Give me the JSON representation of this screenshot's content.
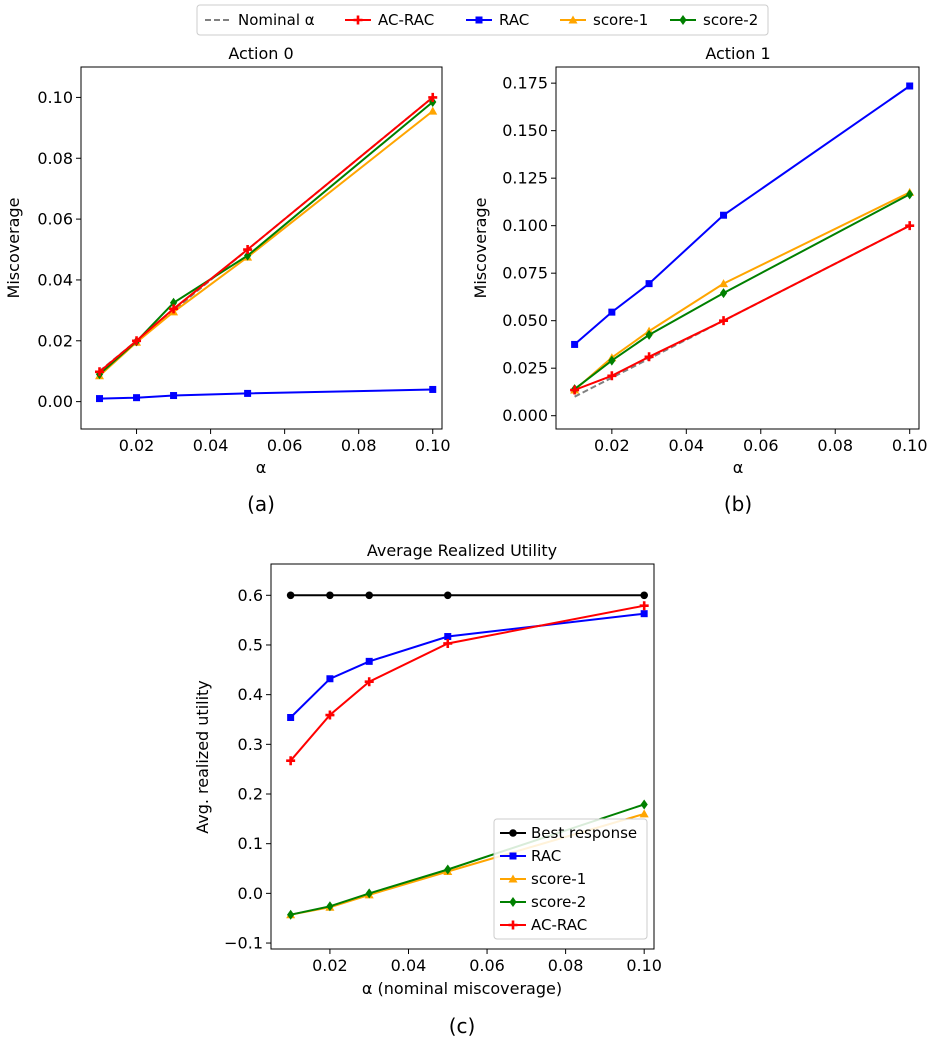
{
  "legend_top": {
    "entries": [
      {
        "label": "Nominal α",
        "color": "#808080",
        "marker": "none",
        "dash": true
      },
      {
        "label": "AC-RAC",
        "color": "#ff0000",
        "marker": "plus"
      },
      {
        "label": "RAC",
        "color": "#0000ff",
        "marker": "square"
      },
      {
        "label": "score-1",
        "color": "#ffa500",
        "marker": "triangle"
      },
      {
        "label": "score-2",
        "color": "#008000",
        "marker": "diamond"
      }
    ]
  },
  "panel_labels": [
    "(a)",
    "(b)",
    "(c)"
  ],
  "chart_data": [
    {
      "type": "line",
      "title": "Action 0",
      "xlabel": "α",
      "ylabel": "Miscoverage",
      "x": [
        0.01,
        0.02,
        0.03,
        0.05,
        0.1
      ],
      "xlim": [
        0.005,
        0.1025
      ],
      "ylim": [
        -0.009,
        0.11
      ],
      "xticks": [
        0.02,
        0.04,
        0.06,
        0.08,
        0.1
      ],
      "xtick_labels": [
        "0.02",
        "0.04",
        "0.06",
        "0.08",
        "0.10"
      ],
      "yticks": [
        0.0,
        0.02,
        0.04,
        0.06,
        0.08,
        0.1
      ],
      "ytick_labels": [
        "0.00",
        "0.02",
        "0.04",
        "0.06",
        "0.08",
        "0.10"
      ],
      "grid": false,
      "series": [
        {
          "name": "Nominal α",
          "color": "#808080",
          "marker": "none",
          "dash": true,
          "values": [
            0.01,
            0.02,
            0.03,
            0.05,
            0.1
          ]
        },
        {
          "name": "RAC",
          "color": "#0000ff",
          "marker": "square",
          "values": [
            0.001,
            0.0013,
            0.002,
            0.0027,
            0.004
          ]
        },
        {
          "name": "score-1",
          "color": "#ffa500",
          "marker": "triangle",
          "values": [
            0.0085,
            0.0195,
            0.0295,
            0.0475,
            0.0955
          ]
        },
        {
          "name": "score-2",
          "color": "#008000",
          "marker": "diamond",
          "values": [
            0.009,
            0.0198,
            0.0325,
            0.048,
            0.0985
          ]
        },
        {
          "name": "AC-RAC",
          "color": "#ff0000",
          "marker": "plus",
          "values": [
            0.0098,
            0.02,
            0.0305,
            0.05,
            0.1
          ]
        }
      ]
    },
    {
      "type": "line",
      "title": "Action 1",
      "xlabel": "α",
      "ylabel": "Miscoverage",
      "x": [
        0.01,
        0.02,
        0.03,
        0.05,
        0.1
      ],
      "xlim": [
        0.005,
        0.1025
      ],
      "ylim": [
        -0.007,
        0.1835
      ],
      "xticks": [
        0.02,
        0.04,
        0.06,
        0.08,
        0.1
      ],
      "xtick_labels": [
        "0.02",
        "0.04",
        "0.06",
        "0.08",
        "0.10"
      ],
      "yticks": [
        0.0,
        0.025,
        0.05,
        0.075,
        0.1,
        0.125,
        0.15,
        0.175
      ],
      "ytick_labels": [
        "0.000",
        "0.025",
        "0.050",
        "0.075",
        "0.100",
        "0.125",
        "0.150",
        "0.175"
      ],
      "grid": false,
      "series": [
        {
          "name": "Nominal α",
          "color": "#808080",
          "marker": "none",
          "dash": true,
          "values": [
            0.01,
            0.02,
            0.03,
            0.05,
            0.1
          ]
        },
        {
          "name": "RAC",
          "color": "#0000ff",
          "marker": "square",
          "values": [
            0.0375,
            0.0545,
            0.0695,
            0.1055,
            0.1735
          ]
        },
        {
          "name": "score-1",
          "color": "#ffa500",
          "marker": "triangle",
          "values": [
            0.0135,
            0.0305,
            0.0445,
            0.0695,
            0.1175
          ]
        },
        {
          "name": "score-2",
          "color": "#008000",
          "marker": "diamond",
          "values": [
            0.014,
            0.029,
            0.0425,
            0.0645,
            0.1165
          ]
        },
        {
          "name": "AC-RAC",
          "color": "#ff0000",
          "marker": "plus",
          "values": [
            0.0135,
            0.021,
            0.031,
            0.05,
            0.1
          ]
        }
      ]
    },
    {
      "type": "line",
      "title": "Average Realized Utility",
      "xlabel": "α (nominal miscoverage)",
      "ylabel": "Avg. realized utility",
      "x": [
        0.01,
        0.02,
        0.03,
        0.05,
        0.1
      ],
      "xlim": [
        0.005,
        0.1025
      ],
      "ylim": [
        -0.112,
        0.663
      ],
      "xticks": [
        0.02,
        0.04,
        0.06,
        0.08,
        0.1
      ],
      "xtick_labels": [
        "0.02",
        "0.04",
        "0.06",
        "0.08",
        "0.10"
      ],
      "yticks": [
        -0.1,
        0.0,
        0.1,
        0.2,
        0.3,
        0.4,
        0.5,
        0.6
      ],
      "ytick_labels": [
        "−0.1",
        "0.0",
        "0.1",
        "0.2",
        "0.3",
        "0.4",
        "0.5",
        "0.6"
      ],
      "grid": false,
      "legend_placement": "lower-right",
      "legend": [
        "Best response",
        "RAC",
        "score-1",
        "score-2",
        "AC-RAC"
      ],
      "series": [
        {
          "name": "Best response",
          "color": "#000000",
          "marker": "circle",
          "values": [
            0.6,
            0.6,
            0.6,
            0.6,
            0.6
          ]
        },
        {
          "name": "RAC",
          "color": "#0000ff",
          "marker": "square",
          "values": [
            0.354,
            0.432,
            0.467,
            0.517,
            0.563
          ]
        },
        {
          "name": "score-1",
          "color": "#ffa500",
          "marker": "triangle",
          "values": [
            -0.043,
            -0.028,
            -0.003,
            0.044,
            0.16
          ]
        },
        {
          "name": "score-2",
          "color": "#008000",
          "marker": "diamond",
          "values": [
            -0.043,
            -0.026,
            0.0,
            0.048,
            0.179
          ]
        },
        {
          "name": "AC-RAC",
          "color": "#ff0000",
          "marker": "plus",
          "values": [
            0.267,
            0.359,
            0.426,
            0.503,
            0.579
          ]
        }
      ]
    }
  ]
}
